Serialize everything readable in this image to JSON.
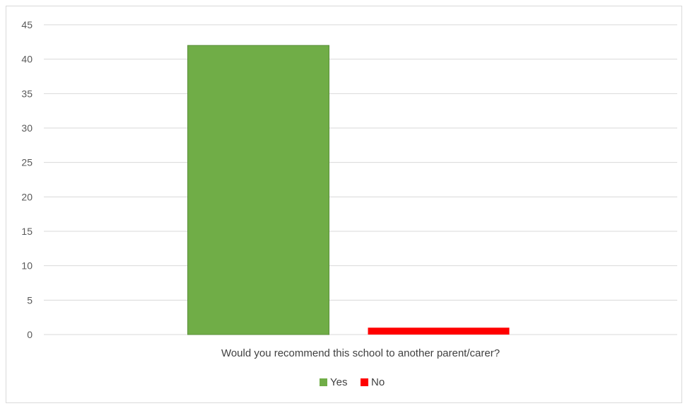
{
  "chart_data": {
    "type": "bar",
    "categories": [
      "Would you recommend this school to another parent/carer?"
    ],
    "series": [
      {
        "name": "Yes",
        "values": [
          42
        ],
        "color": "#70ad47"
      },
      {
        "name": "No",
        "values": [
          1
        ],
        "color": "#ff0000"
      }
    ],
    "ylim": [
      0,
      45
    ],
    "yticks": [
      0,
      5,
      10,
      15,
      20,
      25,
      30,
      35,
      40,
      45
    ],
    "grid": true,
    "legend": "bottom"
  }
}
